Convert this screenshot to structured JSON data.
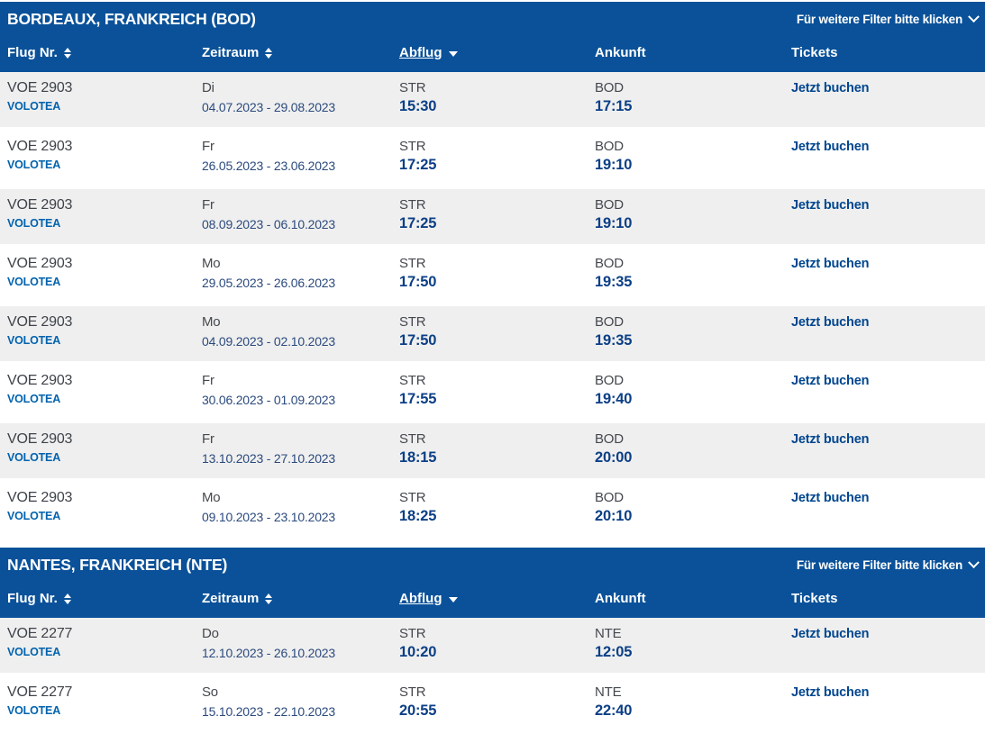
{
  "labels": {
    "filter_link": "Für weitere Filter bitte klicken"
  },
  "columns": [
    "Flug Nr.",
    "Zeitraum",
    "Abflug",
    "Ankunft",
    "Tickets"
  ],
  "colors": {
    "header_blue": "#0a5199",
    "row_alt_gray": "#efefef",
    "flight_text": "#3e434a",
    "airline_blue": "#0063ae",
    "period_navy": "#2b4a7d",
    "time_navy": "#0c3f86",
    "link_blue": "#00468f"
  },
  "icons": {
    "sort": "sort-arrows-icon",
    "sort_active": "triangle-down-icon",
    "filter": "chevron-down-icon"
  },
  "sections": [
    {
      "title": "BORDEAUX, FRANKREICH (BOD)",
      "rows": [
        {
          "flight": "VOE 2903",
          "airline": "VOLOTEA",
          "day": "Di",
          "period": "04.07.2023 - 29.08.2023",
          "dep_code": "STR",
          "dep_time": "15:30",
          "arr_code": "BOD",
          "arr_time": "17:15",
          "book": "Jetzt buchen"
        },
        {
          "flight": "VOE 2903",
          "airline": "VOLOTEA",
          "day": "Fr",
          "period": "26.05.2023 - 23.06.2023",
          "dep_code": "STR",
          "dep_time": "17:25",
          "arr_code": "BOD",
          "arr_time": "19:10",
          "book": "Jetzt buchen"
        },
        {
          "flight": "VOE 2903",
          "airline": "VOLOTEA",
          "day": "Fr",
          "period": "08.09.2023 - 06.10.2023",
          "dep_code": "STR",
          "dep_time": "17:25",
          "arr_code": "BOD",
          "arr_time": "19:10",
          "book": "Jetzt buchen"
        },
        {
          "flight": "VOE 2903",
          "airline": "VOLOTEA",
          "day": "Mo",
          "period": "29.05.2023 - 26.06.2023",
          "dep_code": "STR",
          "dep_time": "17:50",
          "arr_code": "BOD",
          "arr_time": "19:35",
          "book": "Jetzt buchen"
        },
        {
          "flight": "VOE 2903",
          "airline": "VOLOTEA",
          "day": "Mo",
          "period": "04.09.2023 - 02.10.2023",
          "dep_code": "STR",
          "dep_time": "17:50",
          "arr_code": "BOD",
          "arr_time": "19:35",
          "book": "Jetzt buchen"
        },
        {
          "flight": "VOE 2903",
          "airline": "VOLOTEA",
          "day": "Fr",
          "period": "30.06.2023 - 01.09.2023",
          "dep_code": "STR",
          "dep_time": "17:55",
          "arr_code": "BOD",
          "arr_time": "19:40",
          "book": "Jetzt buchen"
        },
        {
          "flight": "VOE 2903",
          "airline": "VOLOTEA",
          "day": "Fr",
          "period": "13.10.2023 - 27.10.2023",
          "dep_code": "STR",
          "dep_time": "18:15",
          "arr_code": "BOD",
          "arr_time": "20:00",
          "book": "Jetzt buchen"
        },
        {
          "flight": "VOE 2903",
          "airline": "VOLOTEA",
          "day": "Mo",
          "period": "09.10.2023 - 23.10.2023",
          "dep_code": "STR",
          "dep_time": "18:25",
          "arr_code": "BOD",
          "arr_time": "20:10",
          "book": "Jetzt buchen"
        }
      ]
    },
    {
      "title": "NANTES, FRANKREICH (NTE)",
      "rows": [
        {
          "flight": "VOE 2277",
          "airline": "VOLOTEA",
          "day": "Do",
          "period": "12.10.2023 - 26.10.2023",
          "dep_code": "STR",
          "dep_time": "10:20",
          "arr_code": "NTE",
          "arr_time": "12:05",
          "book": "Jetzt buchen"
        },
        {
          "flight": "VOE 2277",
          "airline": "VOLOTEA",
          "day": "So",
          "period": "15.10.2023 - 22.10.2023",
          "dep_code": "STR",
          "dep_time": "20:55",
          "arr_code": "NTE",
          "arr_time": "22:40",
          "book": "Jetzt buchen"
        }
      ]
    }
  ]
}
